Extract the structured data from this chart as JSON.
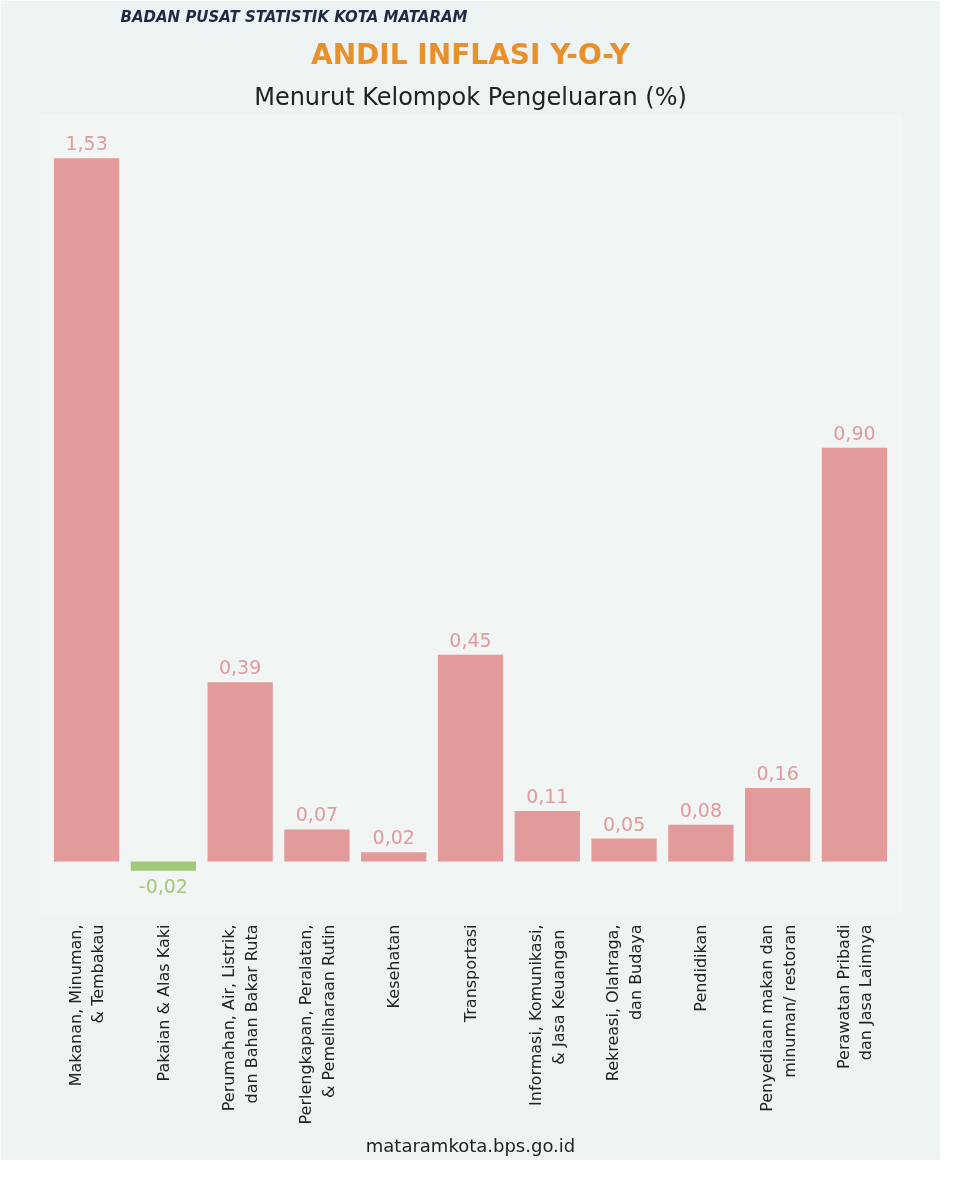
{
  "chart_data": {
    "type": "bar",
    "title": "ANDIL INFLASI Y-O-Y",
    "subtitle": "Menurut Kelompok Pengeluaran (%)",
    "categories": [
      "Makanan, Minuman,\n& Tembakau",
      "Pakaian & Alas Kaki",
      "Perumahan, Air, Listrik,\ndan Bahan Bakar Ruta",
      "Perlengkapan, Peralatan,\n& Pemeliharaan Rutin",
      "Kesehatan",
      "Transportasi",
      "Informasi, Komunikasi,\n& Jasa  Keuangan",
      "Rekreasi, Olahraga,\ndan Budaya",
      "Pendidikan",
      "Penyediaan makan dan\nminuman/ restoran",
      "Perawatan Pribadi\ndan Jasa Lainnya"
    ],
    "values": [
      1.53,
      -0.02,
      0.39,
      0.07,
      0.02,
      0.45,
      0.11,
      0.05,
      0.08,
      0.16,
      0.9
    ],
    "colors": [
      "#e39a9a",
      "#a3c87a",
      "#e39a9a",
      "#e39a9a",
      "#e39a9a",
      "#e39a9a",
      "#e39a9a",
      "#e39a9a",
      "#e39a9a",
      "#e39a9a",
      "#e39a9a"
    ],
    "value_labels": [
      "1,53",
      "-0,02",
      "0,39",
      "0,07",
      "0,02",
      "0,45",
      "0,11",
      "0,05",
      "0,08",
      "0,16",
      "0,90"
    ],
    "annotations": [
      "BADAN PUSAT STATISTIK KOTA MATARAM",
      "mataramkota.bps.go.id"
    ],
    "grid": false
  }
}
